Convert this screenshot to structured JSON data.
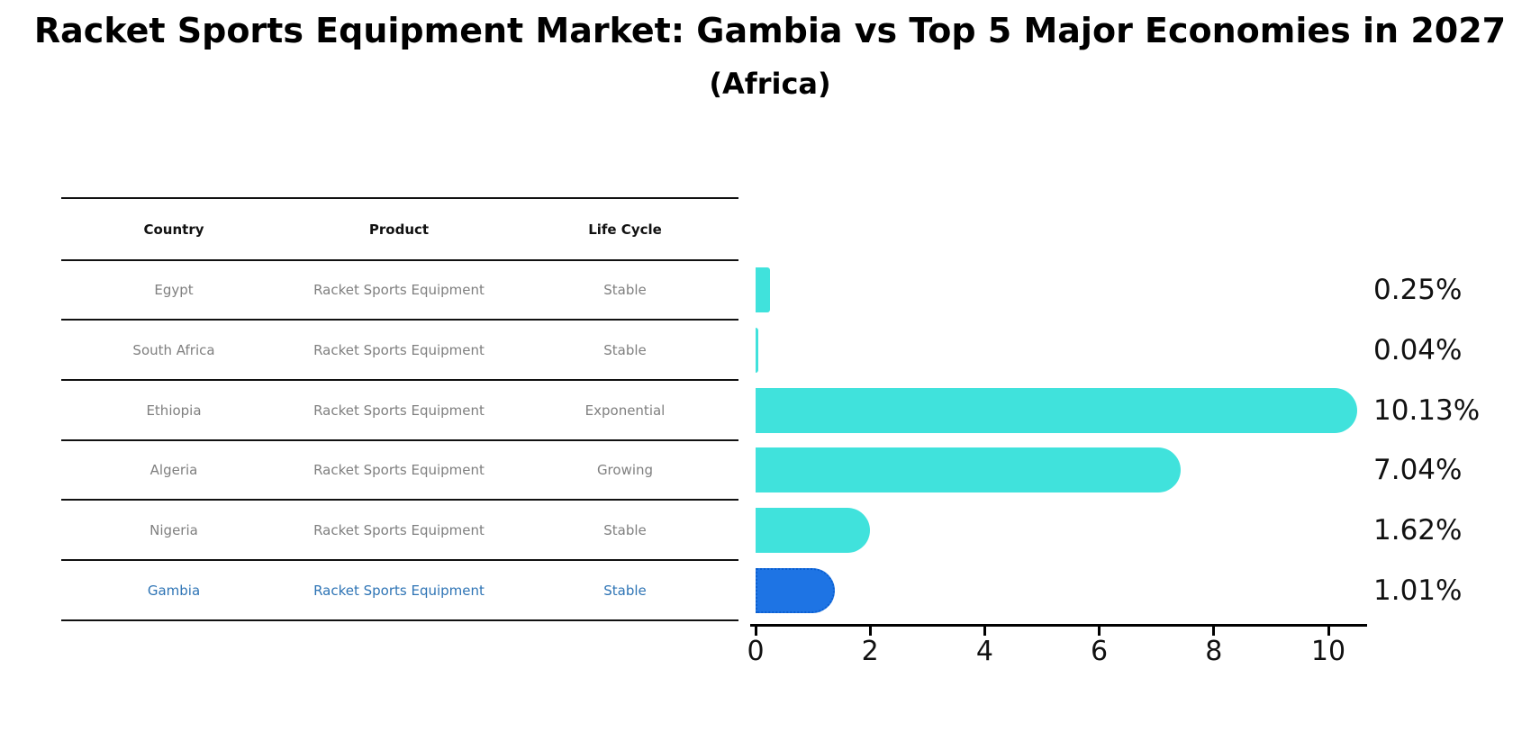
{
  "header": {
    "title": "Racket Sports Equipment Market: Gambia vs Top 5 Major Economies in 2027",
    "subtitle": "(Africa)"
  },
  "table": {
    "columns": [
      "Country",
      "Product",
      "Life Cycle"
    ],
    "rows": [
      {
        "country": "Egypt",
        "product": "Racket Sports Equipment",
        "life_cycle": "Stable",
        "highlight": false
      },
      {
        "country": "South Africa",
        "product": "Racket Sports Equipment",
        "life_cycle": "Stable",
        "highlight": false
      },
      {
        "country": "Ethiopia",
        "product": "Racket Sports Equipment",
        "life_cycle": "Exponential",
        "highlight": false
      },
      {
        "country": "Algeria",
        "product": "Racket Sports Equipment",
        "life_cycle": "Growing",
        "highlight": false
      },
      {
        "country": "Nigeria",
        "product": "Racket Sports Equipment",
        "life_cycle": "Stable",
        "highlight": false
      },
      {
        "country": "Gambia",
        "product": "Racket Sports Equipment",
        "life_cycle": "Stable",
        "highlight": true
      }
    ]
  },
  "chart_data": {
    "type": "bar",
    "orientation": "horizontal",
    "title": "Racket Sports Equipment Market: Gambia vs Top 5 Major Economies in 2027 (Africa)",
    "categories": [
      "Egypt",
      "South Africa",
      "Ethiopia",
      "Algeria",
      "Nigeria",
      "Gambia"
    ],
    "values": [
      0.25,
      0.04,
      10.13,
      7.04,
      1.62,
      1.01
    ],
    "value_labels": [
      "0.25%",
      "0.04%",
      "10.13%",
      "7.04%",
      "1.62%",
      "1.01%"
    ],
    "x_ticks": [
      "0",
      "2",
      "4",
      "6",
      "8",
      "10"
    ],
    "x_tick_values": [
      0,
      2,
      4,
      6,
      8,
      10
    ],
    "xlim": [
      0,
      10.75
    ],
    "highlight_category": "Gambia",
    "grid": false,
    "legend": false,
    "xlabel": "",
    "ylabel": ""
  },
  "colors": {
    "bar_cyan": "#40E2DC",
    "bar_highlight_blue": "#1E74E4",
    "bar_highlight_edge": "#0B5FD0",
    "highlight_text_blue": "#2E74B5",
    "muted_text": "#7F7F7F",
    "text_black": "#111111"
  }
}
